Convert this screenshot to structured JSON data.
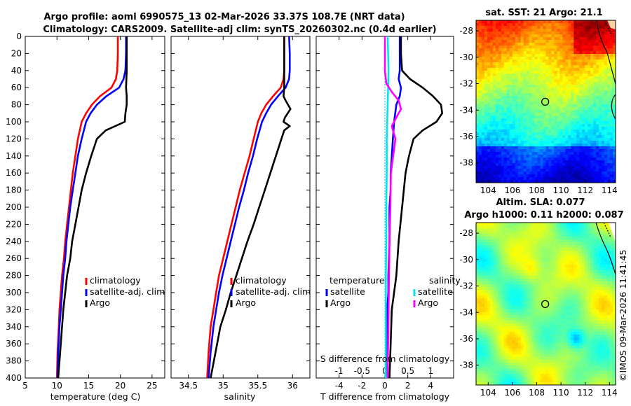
{
  "header": {
    "line1": "Argo profile: aoml 6990575_13 02-Mar-2026 33.37S 108.7E (NRT data)",
    "line2": "Climatology: CARS2009. Satellite-adj clim: synTS_20260302.nc (0.4d earlier)"
  },
  "footer": {
    "stamp": "©IMOS 09-Mar-2026 11:41:45"
  },
  "colors": {
    "climatology": "#ff0000",
    "satellite": "#0000ff",
    "argo": "#000000",
    "sat_temp_diff": "#00e5ee",
    "argo_sal_diff": "#ff00ff"
  },
  "chart_data": [
    {
      "id": "temperature",
      "type": "line",
      "xlabel": "temperature (deg C)",
      "ylabel": "",
      "xlim": [
        5,
        27
      ],
      "ylim": [
        400,
        0
      ],
      "xticks": [
        "5",
        "10",
        "15",
        "20",
        "25"
      ],
      "yticks": [
        "0",
        "20",
        "40",
        "60",
        "80",
        "100",
        "120",
        "140",
        "160",
        "180",
        "200",
        "220",
        "240",
        "260",
        "280",
        "300",
        "320",
        "340",
        "360",
        "380",
        "400"
      ],
      "legend": [
        "climatology",
        "satellite-adj. clim",
        "Argo"
      ],
      "series": [
        {
          "name": "climatology",
          "x": [
            19.6,
            19.6,
            19.5,
            19.3,
            18.6,
            16.8,
            15.5,
            14.6,
            13.9,
            13.3,
            12.9,
            12.5,
            12.2,
            11.9,
            11.6,
            11.3,
            11.1,
            10.8,
            10.6,
            10.4,
            10.3,
            10.1,
            10.0
          ],
          "y": [
            0,
            20,
            40,
            50,
            60,
            70,
            80,
            90,
            100,
            120,
            140,
            160,
            180,
            200,
            220,
            240,
            260,
            280,
            300,
            320,
            340,
            370,
            400
          ]
        },
        {
          "name": "satellite-adj. clim",
          "x": [
            20.9,
            20.9,
            20.8,
            20.5,
            19.8,
            17.8,
            16.3,
            15.3,
            14.6,
            13.9,
            13.3,
            12.9,
            12.5,
            12.1,
            11.8,
            11.5,
            11.3,
            11.0,
            10.8,
            10.6,
            10.4,
            10.2,
            10.1
          ],
          "y": [
            0,
            20,
            40,
            50,
            60,
            70,
            80,
            90,
            100,
            120,
            140,
            160,
            180,
            200,
            220,
            240,
            260,
            280,
            300,
            320,
            340,
            370,
            400
          ]
        },
        {
          "name": "Argo",
          "x": [
            21.0,
            21.0,
            21.0,
            20.9,
            21.0,
            21.0,
            20.8,
            20.7,
            17.7,
            16.3,
            15.4,
            14.6,
            13.9,
            13.4,
            12.9,
            12.4,
            12.1,
            11.6,
            11.3,
            11.0,
            10.8,
            10.5,
            10.2
          ],
          "y": [
            0,
            20,
            40,
            60,
            70,
            80,
            90,
            100,
            110,
            120,
            140,
            160,
            180,
            200,
            220,
            240,
            260,
            280,
            300,
            320,
            340,
            370,
            400
          ]
        }
      ]
    },
    {
      "id": "salinity",
      "type": "line",
      "xlabel": "salinity",
      "ylabel": "",
      "xlim": [
        34.25,
        36.25
      ],
      "ylim": [
        400,
        0
      ],
      "xticks": [
        "34.5",
        "35",
        "35.5",
        "36"
      ],
      "legend": [
        "climatology",
        "satellite-adj. clim",
        "Argo"
      ],
      "series": [
        {
          "name": "climatology",
          "x": [
            35.88,
            35.88,
            35.88,
            35.87,
            35.83,
            35.72,
            35.62,
            35.55,
            35.5,
            35.44,
            35.38,
            35.31,
            35.24,
            35.18,
            35.12,
            35.06,
            35.0,
            34.94,
            34.9,
            34.86,
            34.82,
            34.79,
            34.77
          ],
          "y": [
            0,
            20,
            40,
            50,
            60,
            70,
            80,
            90,
            100,
            120,
            140,
            160,
            180,
            200,
            220,
            240,
            260,
            280,
            300,
            320,
            340,
            370,
            400
          ]
        },
        {
          "name": "satellite-adj. clim",
          "x": [
            35.95,
            35.96,
            35.96,
            35.95,
            35.9,
            35.79,
            35.69,
            35.62,
            35.56,
            35.49,
            35.43,
            35.36,
            35.3,
            35.23,
            35.17,
            35.11,
            35.05,
            34.99,
            34.94,
            34.9,
            34.86,
            34.82,
            34.79
          ],
          "y": [
            0,
            20,
            40,
            50,
            60,
            70,
            80,
            90,
            100,
            120,
            140,
            160,
            180,
            200,
            220,
            240,
            260,
            280,
            300,
            320,
            340,
            370,
            400
          ]
        },
        {
          "name": "Argo",
          "x": [
            35.88,
            35.88,
            35.88,
            35.88,
            35.87,
            35.9,
            35.97,
            35.89,
            35.87,
            35.96,
            35.88,
            35.84,
            35.76,
            35.68,
            35.6,
            35.52,
            35.44,
            35.35,
            35.27,
            35.19,
            35.11,
            35.04,
            34.96,
            34.89,
            34.82
          ],
          "y": [
            0,
            20,
            40,
            60,
            70,
            75,
            85,
            95,
            100,
            105,
            110,
            120,
            140,
            160,
            180,
            200,
            220,
            240,
            260,
            280,
            300,
            320,
            340,
            370,
            400
          ]
        }
      ]
    },
    {
      "id": "difference",
      "type": "line",
      "xlabel": "T difference from climatology",
      "x2label": "S difference from climatology",
      "xlim": [
        -6,
        6
      ],
      "ylim": [
        400,
        0
      ],
      "xticks": [
        "-4",
        "-2",
        "0",
        "2",
        "4"
      ],
      "x2ticks": [
        "-1",
        "-0.5",
        "0",
        "0.5",
        "1"
      ],
      "legend_temperature_title": "temperature",
      "legend_salinity_title": "salinity",
      "legend_temperature": [
        "satellite",
        "Argo"
      ],
      "legend_salinity": [
        "satellite",
        "Argo"
      ],
      "series": [
        {
          "name": "T satellite",
          "x": [
            1.3,
            1.3,
            1.3,
            1.2,
            1.4,
            1.3,
            1.0,
            0.8,
            0.7,
            0.6,
            0.5,
            0.5,
            0.4,
            0.4,
            0.3,
            0.3,
            0.2,
            0.2,
            0.2,
            0.2
          ],
          "y": [
            0,
            20,
            40,
            50,
            60,
            70,
            80,
            100,
            120,
            140,
            160,
            180,
            200,
            240,
            280,
            300,
            320,
            340,
            370,
            400
          ]
        },
        {
          "name": "T Argo",
          "x": [
            1.4,
            1.4,
            1.5,
            2.2,
            3.3,
            4.2,
            4.9,
            5.0,
            4.5,
            3.3,
            2.5,
            2.1,
            1.8,
            1.5,
            1.2,
            1.0,
            0.8,
            0.6,
            0.5,
            0.4
          ],
          "y": [
            0,
            20,
            40,
            50,
            60,
            70,
            80,
            90,
            100,
            110,
            120,
            140,
            160,
            200,
            240,
            280,
            300,
            320,
            360,
            400
          ]
        },
        {
          "name": "S satellite",
          "x": [
            0.06,
            0.07,
            0.08,
            0.07,
            0.06,
            0.05,
            0.04,
            0.04,
            0.03,
            0.03,
            0.02,
            0.02,
            0.02,
            0.02
          ],
          "y": [
            0,
            20,
            40,
            60,
            80,
            100,
            120,
            160,
            200,
            240,
            280,
            320,
            360,
            400
          ]
        },
        {
          "name": "S Argo",
          "x": [
            0.0,
            0.0,
            0.0,
            0.03,
            0.15,
            0.3,
            0.35,
            0.25,
            0.15,
            0.23,
            0.18,
            0.13,
            0.12,
            0.1,
            0.09,
            0.08,
            0.07,
            0.06
          ],
          "y": [
            0,
            20,
            40,
            55,
            65,
            75,
            85,
            95,
            105,
            120,
            140,
            160,
            200,
            240,
            280,
            320,
            360,
            400
          ]
        }
      ]
    },
    {
      "id": "sst-map",
      "type": "heatmap",
      "title": "sat. SST: 21 Argo: 21.1",
      "xlim": [
        103,
        114.5
      ],
      "ylim": [
        -39.5,
        -27.2
      ],
      "xticks": [
        "104",
        "106",
        "108",
        "110",
        "112",
        "114"
      ],
      "yticks": [
        "-28",
        "-30",
        "-32",
        "-34",
        "-36",
        "-38"
      ],
      "marker": {
        "lon": 108.7,
        "lat": -33.37
      }
    },
    {
      "id": "sla-map",
      "type": "heatmap",
      "title": "Altim. SLA: 0.077",
      "subtitle": "Argo h1000: 0.11 h2000: 0.087",
      "xlim": [
        103,
        114.5
      ],
      "ylim": [
        -39.5,
        -27.2
      ],
      "xticks": [
        "104",
        "106",
        "108",
        "110",
        "112",
        "114"
      ],
      "yticks": [
        "-28",
        "-30",
        "-32",
        "-34",
        "-36",
        "-38"
      ],
      "marker": {
        "lon": 108.7,
        "lat": -33.37
      }
    }
  ]
}
